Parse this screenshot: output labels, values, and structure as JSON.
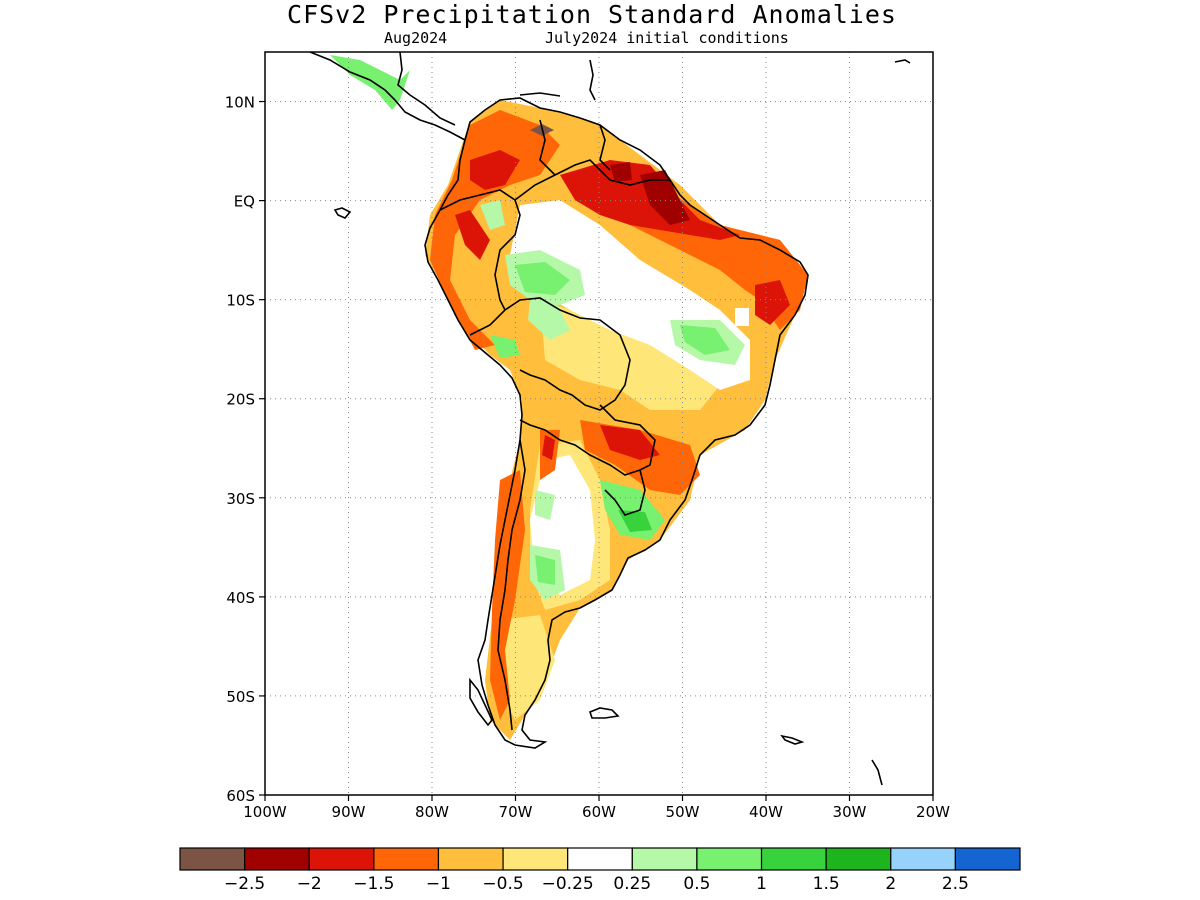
{
  "title": "CFSv2 Precipitation Standard Anomalies",
  "subtitle_left": "Aug2024",
  "subtitle_right": "July2024 initial conditions",
  "map": {
    "lon_range": [
      -100,
      -20
    ],
    "lat_range": [
      -60,
      15
    ],
    "lon_ticks": [
      "100W",
      "90W",
      "80W",
      "70W",
      "60W",
      "50W",
      "40W",
      "30W",
      "20W"
    ],
    "lat_ticks": [
      "10N",
      "EQ",
      "10S",
      "20S",
      "30S",
      "40S",
      "50S",
      "60S"
    ],
    "grid": "dotted"
  },
  "colorbar": {
    "labels": [
      "−2.5",
      "−2",
      "−1.5",
      "−1",
      "−0.5",
      "−0.25",
      "0.25",
      "0.5",
      "1",
      "1.5",
      "2",
      "2.5"
    ],
    "colors": [
      "#7b5446",
      "#a00000",
      "#dc1408",
      "#ff6608",
      "#ffbe3c",
      "#ffe678",
      "#ffffff",
      "#b4f8a8",
      "#78f070",
      "#37d23c",
      "#1eb41e",
      "#96d2fa",
      "#1464d2"
    ]
  },
  "chart_data": {
    "type": "heatmap",
    "variable": "precipitation standard anomaly",
    "region": "South America",
    "levels": [
      -2.5,
      -2,
      -1.5,
      -1,
      -0.5,
      -0.25,
      0.25,
      0.5,
      1,
      1.5,
      2,
      2.5
    ],
    "xlim": [
      -100,
      -20
    ],
    "ylim": [
      -60,
      15
    ]
  }
}
